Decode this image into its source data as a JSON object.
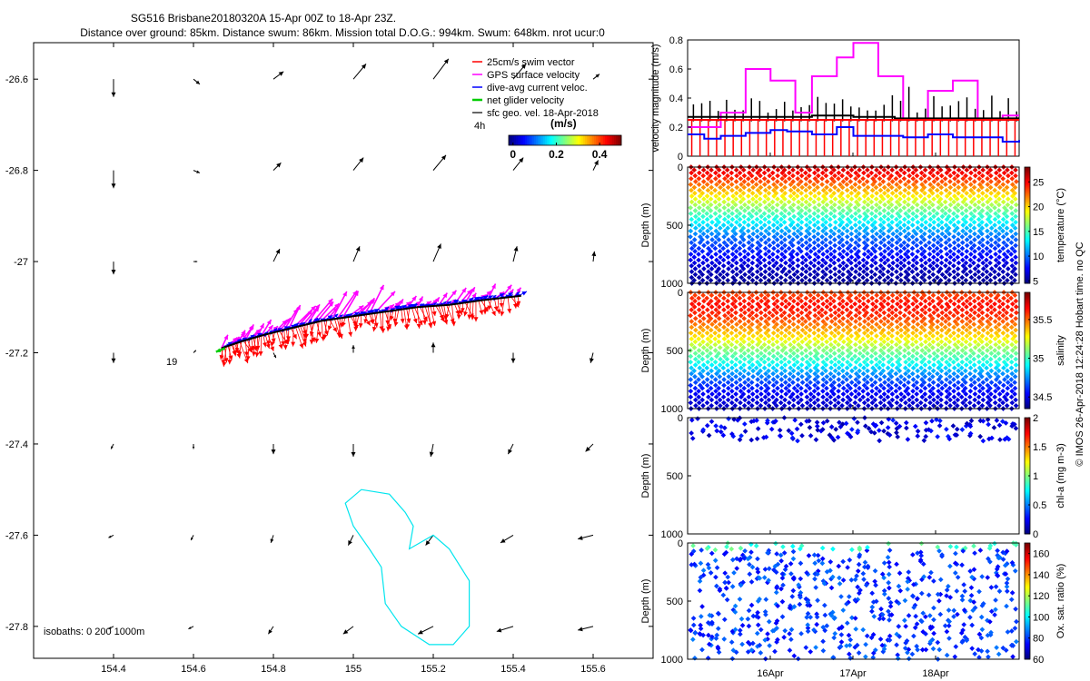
{
  "header": {
    "title_line1": "SG516 Brisbane20180320A 15-Apr 00Z to 18-Apr 23Z.",
    "title_line2": "Distance over ground: 85km. Distance swum: 86km. Mission total D.O.G.: 994km. Swum: 648km. nrot ucur:0"
  },
  "side_note": "© IMOS 26-Apr-2018 12:24:28 Hobart time. no QC",
  "colors": {
    "swim": "#ff0000",
    "gps": "#ff00ff",
    "current": "#0000ff",
    "net": "#00cc00",
    "geo": "#000000",
    "isobath": "#00e5ee"
  },
  "chart_data": [
    {
      "id": "map",
      "type": "scatter",
      "title": "",
      "xlim": [
        154.2,
        155.75
      ],
      "ylim": [
        -27.87,
        -26.52
      ],
      "x_ticks": [
        154.4,
        154.6,
        154.8,
        155,
        155.2,
        155.4,
        155.6
      ],
      "x_tick_labels": [
        "154.4",
        "154.6",
        "154.8",
        "155",
        "155.2",
        "155.4",
        "155.6"
      ],
      "y_ticks": [
        -26.6,
        -26.8,
        -27,
        -27.2,
        -27.4,
        -27.6,
        -27.8
      ],
      "y_tick_labels": [
        "-26.6",
        "-26.8",
        "-27",
        "-27.2",
        "-27.4",
        "-27.6",
        "-27.8"
      ],
      "legend": {
        "position": "top-right",
        "entries": [
          {
            "label": "25cm/s swim vector",
            "color_key": "swim"
          },
          {
            "label": "GPS surface velocity",
            "color_key": "gps"
          },
          {
            "label": "dive-avg current veloc.",
            "color_key": "current"
          },
          {
            "label": "net glider velocity",
            "color_key": "net"
          },
          {
            "label": "sfc geo. vel. 18-Apr-2018",
            "color_key": "geo"
          }
        ],
        "time_label": "4h"
      },
      "colorbar": {
        "title": "(m/s)",
        "ticks": [
          0,
          0.2,
          0.4
        ],
        "tick_labels": [
          "0",
          "0.2",
          "0.4"
        ],
        "range": [
          -0.02,
          0.5
        ]
      },
      "annotations": [
        {
          "text": "19",
          "x": 154.49,
          "y": -27.235
        }
      ],
      "isobaths_label": "isobaths: 0   200   1000m",
      "geo_vectors_grid": {
        "x": [
          154.4,
          154.6,
          154.8,
          155.0,
          155.2,
          155.4,
          155.6
        ],
        "y": [
          -26.6,
          -26.8,
          -27.0,
          -27.2,
          -27.4,
          -27.6,
          -27.8
        ],
        "u": [
          [
            0.0,
            0.05,
            0.08,
            0.1,
            0.12,
            0.1,
            0.05
          ],
          [
            0.0,
            0.05,
            0.06,
            0.08,
            0.1,
            0.08,
            0.04
          ],
          [
            0.0,
            0.03,
            0.05,
            0.05,
            0.06,
            0.03,
            0.01
          ],
          [
            0.0,
            0.02,
            0.02,
            0.0,
            0.0,
            0.0,
            -0.02
          ],
          [
            -0.02,
            0.0,
            0.0,
            0.0,
            -0.02,
            -0.04,
            -0.06
          ],
          [
            -0.04,
            -0.02,
            -0.02,
            -0.04,
            -0.06,
            -0.1,
            -0.12
          ],
          [
            -0.04,
            -0.04,
            -0.04,
            -0.08,
            -0.12,
            -0.13,
            -0.12
          ]
        ],
        "v": [
          [
            -0.14,
            -0.04,
            0.06,
            0.12,
            0.16,
            0.12,
            0.04
          ],
          [
            -0.14,
            -0.02,
            0.06,
            0.1,
            0.12,
            0.1,
            0.08
          ],
          [
            -0.1,
            0.0,
            0.1,
            0.12,
            0.14,
            0.12,
            0.08
          ],
          [
            -0.08,
            0.02,
            -0.04,
            0.06,
            0.08,
            -0.08,
            -0.08
          ],
          [
            -0.04,
            -0.04,
            -0.08,
            -0.1,
            -0.1,
            -0.08,
            -0.06
          ],
          [
            -0.02,
            -0.04,
            -0.06,
            -0.08,
            -0.08,
            -0.06,
            -0.03
          ],
          [
            -0.02,
            -0.02,
            -0.06,
            -0.06,
            -0.06,
            -0.04,
            -0.03
          ]
        ]
      },
      "glider_track": {
        "x": [
          154.67,
          154.72,
          154.78,
          154.85,
          154.92,
          155.0,
          155.08,
          155.16,
          155.24,
          155.32,
          155.42
        ],
        "y": [
          -27.19,
          -27.175,
          -27.16,
          -27.145,
          -27.13,
          -27.12,
          -27.11,
          -27.1,
          -27.095,
          -27.085,
          -27.075
        ]
      },
      "isobath_200m": {
        "x": [
          154.98,
          155.02,
          155.09,
          155.13,
          155.15,
          155.14,
          155.2,
          155.24,
          155.29,
          155.29,
          155.25,
          155.19,
          155.12,
          155.08,
          155.07,
          155.04,
          155.0,
          154.98
        ],
        "y": [
          -27.53,
          -27.5,
          -27.51,
          -27.55,
          -27.58,
          -27.63,
          -27.6,
          -27.63,
          -27.7,
          -27.8,
          -27.84,
          -27.84,
          -27.8,
          -27.75,
          -27.67,
          -27.63,
          -27.58,
          -27.53
        ]
      }
    },
    {
      "id": "velocity",
      "type": "line",
      "ylabel": "velocity magnitude (m/s)",
      "ylim": [
        0,
        0.8
      ],
      "y_ticks": [
        0,
        0.2,
        0.4,
        0.6,
        0.8
      ],
      "y_tick_labels": [
        "0",
        "0.2",
        "0.4",
        "0.6",
        "0.8"
      ],
      "x_tick_labels": [
        "16Apr",
        "17Apr",
        "18Apr"
      ],
      "series": [
        {
          "color_key": "gps",
          "x": [
            0.0,
            0.4,
            0.7,
            1.0,
            1.3,
            1.5,
            1.8,
            2.0,
            2.3,
            2.6,
            2.9,
            3.2,
            3.5,
            3.8,
            4.0
          ],
          "y": [
            0.2,
            0.3,
            0.6,
            0.52,
            0.3,
            0.55,
            0.68,
            0.78,
            0.55,
            0.25,
            0.45,
            0.52,
            0.25,
            0.28,
            0.28
          ]
        },
        {
          "color_key": "current",
          "x": [
            0.0,
            0.2,
            0.4,
            0.7,
            1.0,
            1.2,
            1.5,
            1.8,
            2.0,
            2.3,
            2.6,
            2.9,
            3.2,
            3.5,
            3.8,
            4.0
          ],
          "y": [
            0.15,
            0.12,
            0.14,
            0.16,
            0.18,
            0.17,
            0.15,
            0.2,
            0.14,
            0.14,
            0.13,
            0.15,
            0.13,
            0.13,
            0.1,
            0.11
          ]
        },
        {
          "color_key": "geo",
          "x": [
            0.0,
            0.5,
            1.0,
            1.5,
            2.0,
            2.5,
            3.0,
            3.5,
            4.0
          ],
          "y": [
            0.27,
            0.27,
            0.27,
            0.28,
            0.27,
            0.26,
            0.26,
            0.26,
            0.26
          ]
        },
        {
          "color_key": "swim",
          "x": [
            0.0,
            0.5,
            1.0,
            1.5,
            2.0,
            2.5,
            3.0,
            3.5,
            4.0
          ],
          "y": [
            0.25,
            0.25,
            0.25,
            0.25,
            0.25,
            0.25,
            0.25,
            0.25,
            0.25
          ]
        }
      ]
    },
    {
      "id": "temperature",
      "type": "heatmap",
      "ylabel": "Depth (m)",
      "ylim": [
        1000,
        0
      ],
      "y_tick_labels": [
        "0",
        "500",
        "1000"
      ],
      "colorbar": {
        "label": "temperature (°C)",
        "range": [
          4.5,
          28
        ],
        "ticks": [
          5,
          10,
          15,
          20,
          25
        ],
        "tick_labels": [
          "5",
          "10",
          "15",
          "20",
          "25"
        ]
      },
      "profile": {
        "depth": [
          0,
          100,
          200,
          300,
          400,
          500,
          600,
          700,
          800,
          900,
          1000
        ],
        "value": [
          26.5,
          24,
          21,
          18,
          15,
          12.5,
          10,
          8.5,
          7,
          5.8,
          5
        ]
      },
      "dives": 40
    },
    {
      "id": "salinity",
      "type": "heatmap",
      "ylabel": "Depth (m)",
      "ylim": [
        1000,
        0
      ],
      "y_tick_labels": [
        "0",
        "500",
        "1000"
      ],
      "colorbar": {
        "label": "salinity",
        "range": [
          34.35,
          35.85
        ],
        "ticks": [
          34.5,
          35,
          35.5
        ],
        "tick_labels": [
          "34.5",
          "35",
          "35.5"
        ]
      },
      "profile": {
        "depth": [
          0,
          100,
          200,
          300,
          400,
          500,
          600,
          700,
          800,
          900,
          1000
        ],
        "value": [
          35.55,
          35.65,
          35.6,
          35.45,
          35.3,
          35.1,
          34.95,
          34.75,
          34.6,
          34.5,
          34.45
        ]
      },
      "dives": 40
    },
    {
      "id": "chla",
      "type": "heatmap",
      "ylabel": "Depth (m)",
      "ylim": [
        1000,
        0
      ],
      "y_tick_labels": [
        "0",
        "500",
        "1000"
      ],
      "colorbar": {
        "label": "chl-a (mg m-3)",
        "range": [
          0,
          2
        ],
        "ticks": [
          0,
          0.5,
          1,
          1.5,
          2
        ],
        "tick_labels": [
          "0",
          "0.5",
          "1",
          "1.5",
          "2"
        ]
      },
      "depth_range": [
        0,
        200
      ],
      "typical_value": 0.2,
      "dives": 40
    },
    {
      "id": "oxygen",
      "type": "heatmap",
      "ylabel": "Depth (m)",
      "ylim": [
        1000,
        0
      ],
      "y_tick_labels": [
        "0",
        "500",
        "1000"
      ],
      "colorbar": {
        "label": "Ox. sat. ratio (%)",
        "range": [
          60,
          170
        ],
        "ticks": [
          60,
          80,
          100,
          120,
          140,
          160
        ],
        "tick_labels": [
          "60",
          "80",
          "100",
          "120",
          "140",
          "160"
        ]
      },
      "surface_value": 100,
      "deep_value": 80,
      "dives": 40
    }
  ]
}
